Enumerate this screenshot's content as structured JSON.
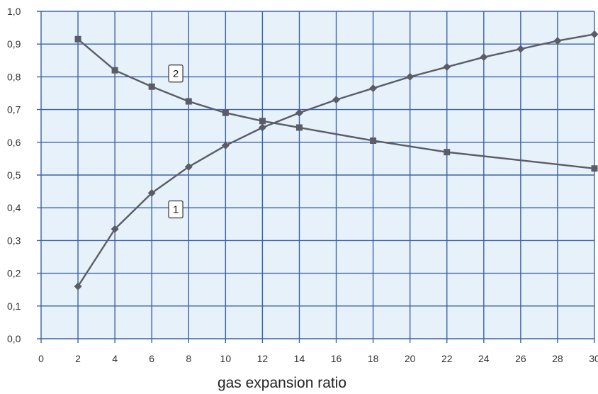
{
  "chart_data": {
    "type": "line",
    "title": "",
    "xlabel": "gas expansion ratio",
    "ylabel": "",
    "xlim": [
      0,
      30
    ],
    "ylim": [
      0,
      1
    ],
    "x_ticks": [
      0,
      2,
      4,
      6,
      8,
      10,
      12,
      14,
      16,
      18,
      20,
      22,
      24,
      26,
      28,
      30
    ],
    "y_ticks": [
      0,
      0.1,
      0.2,
      0.3,
      0.4,
      0.5,
      0.6,
      0.7,
      0.8,
      0.9,
      1.0
    ],
    "x_tick_labels": [
      "0",
      "2",
      "4",
      "6",
      "8",
      "10",
      "12",
      "14",
      "16",
      "18",
      "20",
      "22",
      "24",
      "26",
      "28",
      "30"
    ],
    "y_tick_labels": [
      "0,0",
      "0,1",
      "0,2",
      "0,3",
      "0,4",
      "0,5",
      "0,6",
      "0,7",
      "0,8",
      "0,9",
      "1,0"
    ],
    "grid": true,
    "colors": {
      "plot_background": "#e6f1fa",
      "grid": "#3a62a8",
      "series_line": "#5c5c66",
      "marker": "#5c5c66"
    },
    "series": [
      {
        "tag": "1",
        "marker": "diamond",
        "x": [
          2,
          4,
          6,
          8,
          10,
          12,
          14,
          16,
          18,
          20,
          22,
          24,
          26,
          28,
          30
        ],
        "y": [
          0.16,
          0.335,
          0.445,
          0.525,
          0.59,
          0.645,
          0.69,
          0.73,
          0.765,
          0.8,
          0.83,
          0.86,
          0.885,
          0.91,
          0.93
        ]
      },
      {
        "tag": "2",
        "marker": "square",
        "x": [
          2,
          4,
          6,
          8,
          10,
          12,
          14,
          18,
          22,
          30
        ],
        "y": [
          0.915,
          0.82,
          0.77,
          0.725,
          0.69,
          0.665,
          0.645,
          0.605,
          0.57,
          0.52
        ]
      }
    ],
    "series_tags": [
      {
        "text": "1",
        "x": 7.3,
        "y": 0.395
      },
      {
        "text": "2",
        "x": 7.3,
        "y": 0.81
      }
    ]
  }
}
